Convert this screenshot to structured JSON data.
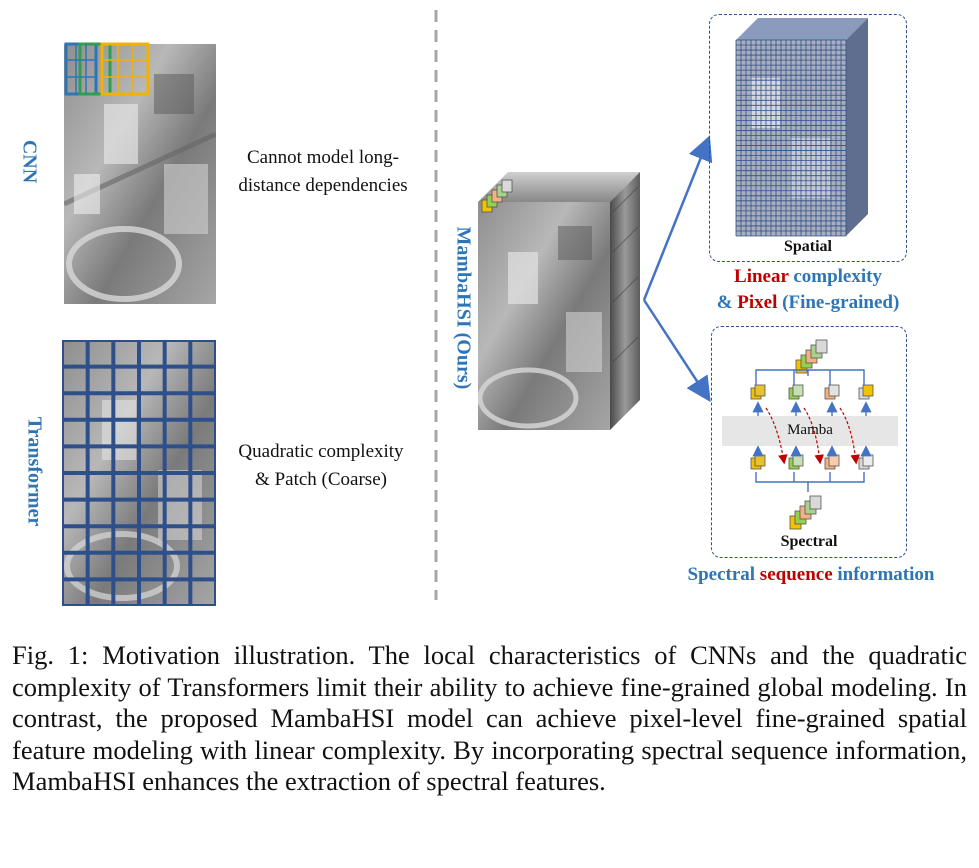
{
  "left": {
    "cnn_label": "CNN",
    "cnn_note_line1": "Cannot model long-",
    "cnn_note_line2": "distance dependencies",
    "transformer_label": "Transformer",
    "transformer_note_line1": "Quadratic complexity",
    "transformer_note_line2": "& Patch (Coarse)"
  },
  "center": {
    "label": "MambaHSI (Ours)"
  },
  "right": {
    "spatial_box_label": "Spatial",
    "linear_word1": "Linear",
    "linear_word2": " complexity",
    "pixel_prefix": "& ",
    "pixel_word": "Pixel",
    "pixel_suffix": " (Fine-grained)",
    "mamba_label": "Mamba",
    "spectral_box_label": "Spectral",
    "spectral_word": "Spectral ",
    "sequence_word": "sequence",
    "information_word": " information"
  },
  "caption": {
    "text": "Fig. 1: Motivation illustration. The local characteristics of CNNs and the quadratic complexity of Transformers limit their ability to achieve fine-grained global modeling. In contrast, the proposed MambaHSI model can achieve pixel-level fine-grained spatial feature modeling with linear complexity. By incorporating spectral sequence information, MambaHSI enhances the extraction of spectral features."
  },
  "colors": {
    "accent_blue": "#2e75b6",
    "grid_navy": "#2f4f8a",
    "highlight_red": "#c00000",
    "cube_yellow": "#f2c200",
    "cube_green": "#92d050",
    "cube_salmon": "#f4b183",
    "cube_gray": "#d9d9d9"
  }
}
